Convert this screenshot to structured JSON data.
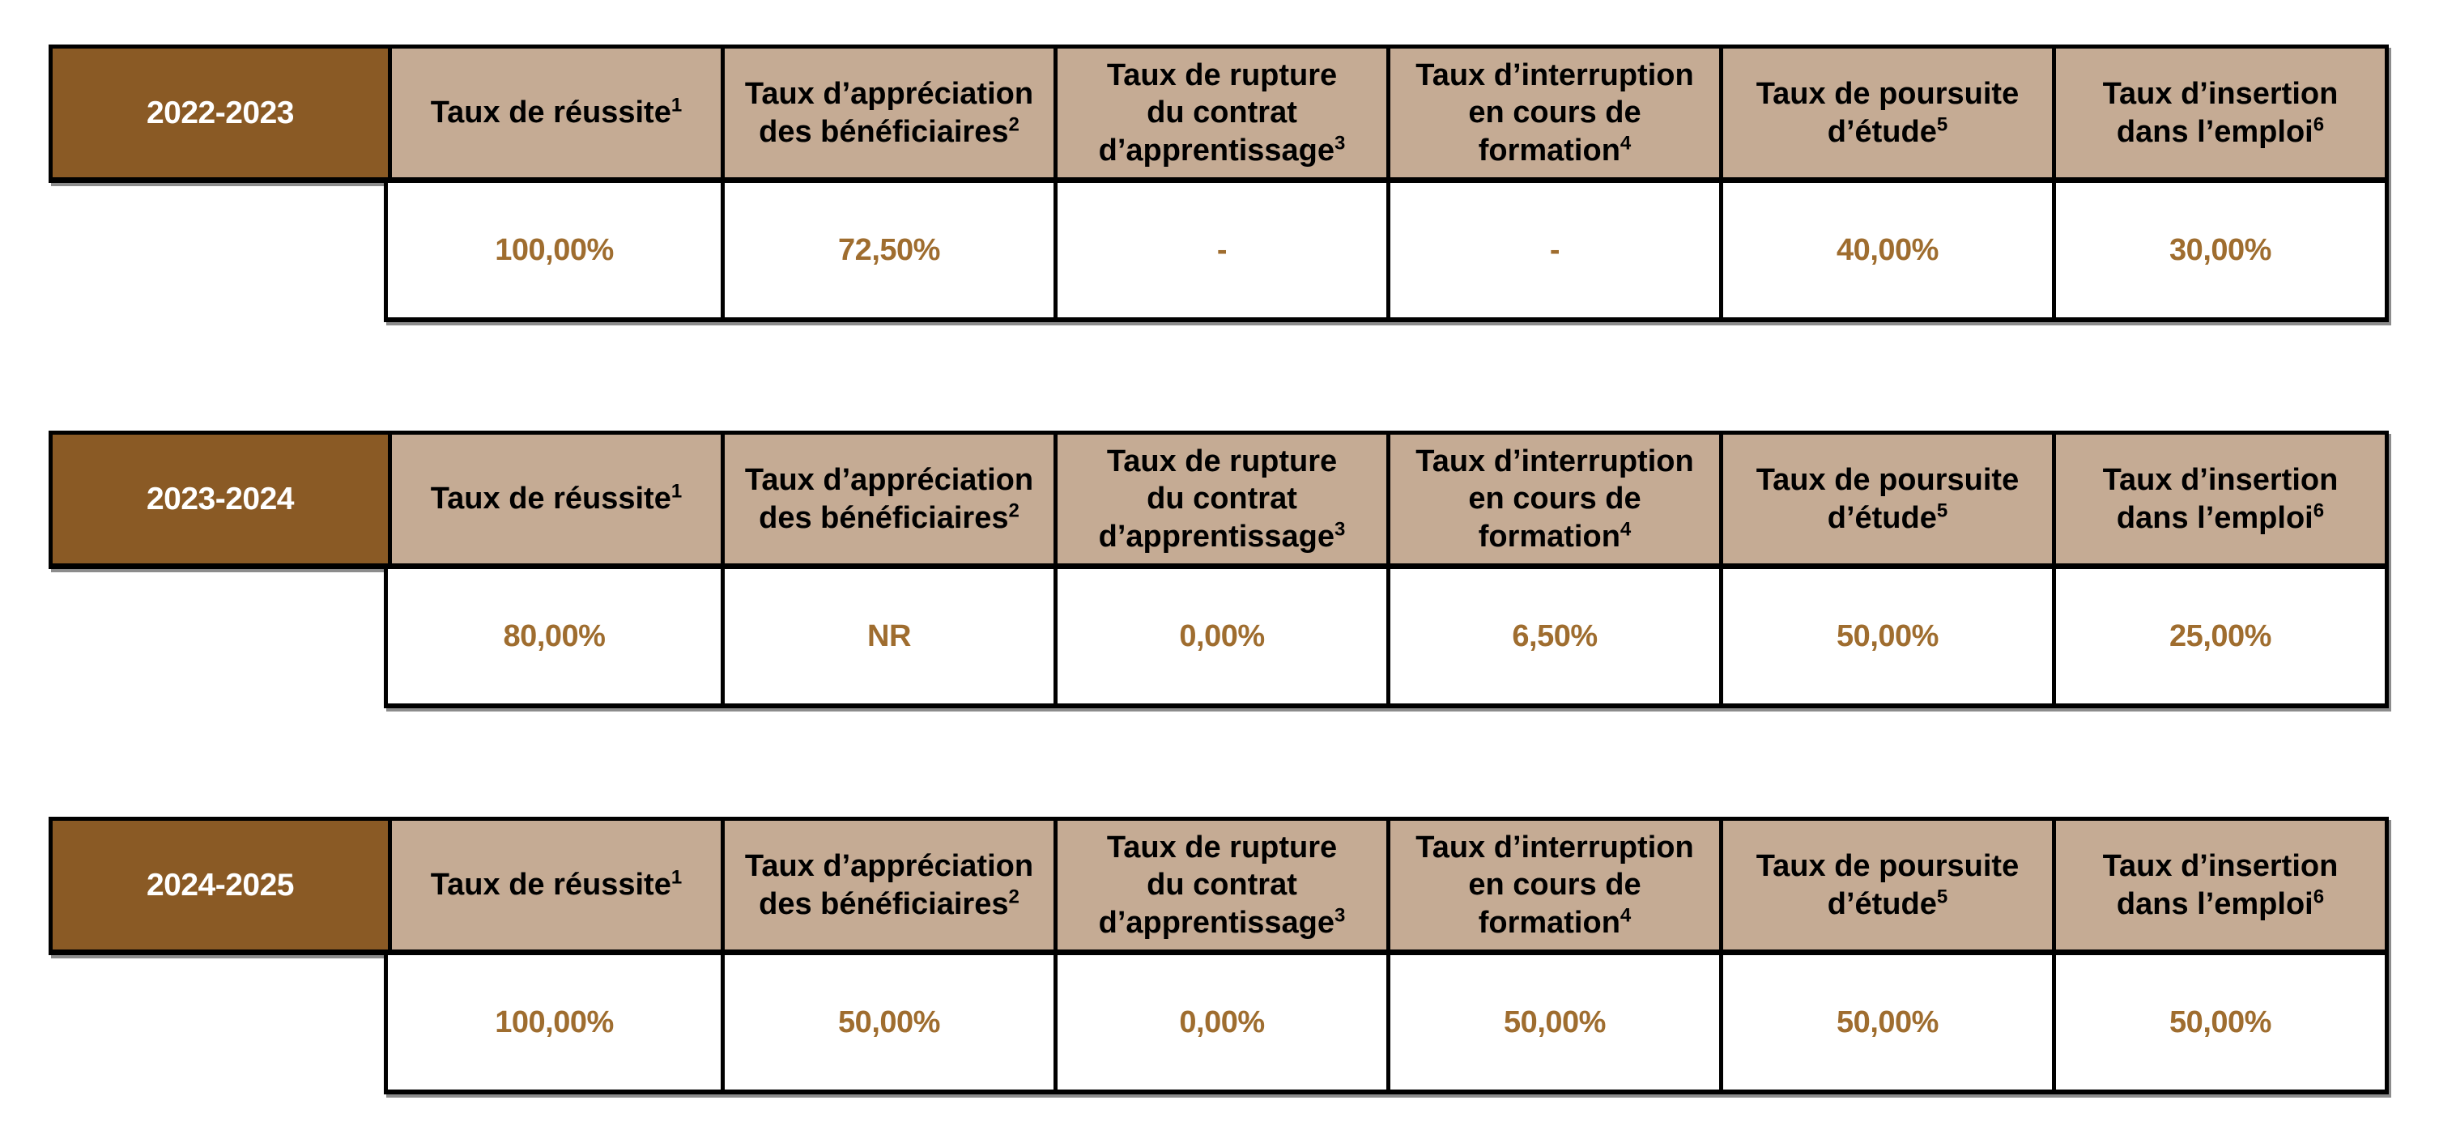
{
  "colors": {
    "page_bg": "#FFFFFF",
    "year_cell_bg": "#8A5A25",
    "year_text": "#FFFFFF",
    "header_cell_bg": "#C5AB94",
    "header_text": "#000000",
    "value_text": "#9F6D2F",
    "border": "#000000"
  },
  "columns": [
    {
      "label": "Taux de réussite",
      "sup": "1"
    },
    {
      "label": "Taux d’appréciation\ndes bénéficiaires",
      "sup": "2"
    },
    {
      "label": "Taux de rupture\ndu contrat\nd’apprentissage",
      "sup": "3"
    },
    {
      "label": "Taux d’interruption\nen cours de\nformation",
      "sup": "4"
    },
    {
      "label": "Taux de poursuite\nd’étude",
      "sup": "5"
    },
    {
      "label": "Taux d’insertion\ndans l’emploi",
      "sup": "6"
    }
  ],
  "tables": [
    {
      "year": "2022-2023",
      "values": [
        "100,00%",
        "72,50%",
        "-",
        "-",
        "40,00%",
        "30,00%"
      ]
    },
    {
      "year": "2023-2024",
      "values": [
        "80,00%",
        "NR",
        "0,00%",
        "6,50%",
        "50,00%",
        "25,00%"
      ]
    },
    {
      "year": "2024-2025",
      "values": [
        "100,00%",
        "50,00%",
        "0,00%",
        "50,00%",
        "50,00%",
        "50,00%"
      ]
    }
  ]
}
